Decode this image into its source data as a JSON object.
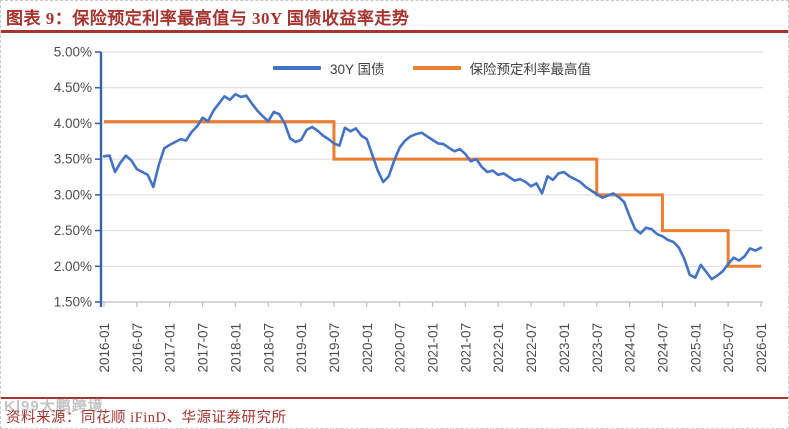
{
  "figure": {
    "title": "图表 9：保险预定利率最高值与 30Y 国债收益率走势",
    "source": "资料来源：同花顺 iFinD、华源证券研究所",
    "watermark": "K|99大鹏跨境"
  },
  "colors": {
    "accent_red": "#A6342F",
    "series_blue": "#4472C4",
    "series_orange": "#ED7D31",
    "gridline": "#D9D9D9",
    "axis_gray": "#BFBFBF",
    "axis_blue": "#3A62A7",
    "tick_label": "#4D4D4D",
    "legend_text": "#404040",
    "watermark_gray": "#8A8A8A"
  },
  "chart_data": {
    "type": "line",
    "title": "保险预定利率最高值与30Y国债收益率走势",
    "xlabel": "",
    "ylabel": "",
    "x_start": "2016-01",
    "x_end": "2026-01",
    "x_tick_interval_months": 6,
    "x_tick_labels": [
      "2016-01",
      "2016-07",
      "2017-01",
      "2017-07",
      "2018-01",
      "2018-07",
      "2019-01",
      "2019-07",
      "2020-01",
      "2020-07",
      "2021-01",
      "2021-07",
      "2022-01",
      "2022-07",
      "2023-01",
      "2023-07",
      "2024-01",
      "2024-07",
      "2025-01",
      "2025-07",
      "2026-01"
    ],
    "ylim": [
      1.5,
      5.0
    ],
    "y_tick_step": 0.5,
    "y_tick_labels": [
      "5.00%",
      "4.50%",
      "4.00%",
      "3.50%",
      "3.00%",
      "2.50%",
      "2.00%",
      "1.50%"
    ],
    "grid": "horizontal",
    "legend_position": "top-center",
    "series": [
      {
        "name": "30Y 国债",
        "color": "#4472C4",
        "style": "line",
        "start_month": "2016-01",
        "frequency": "monthly",
        "unit": "%",
        "values": [
          3.54,
          3.55,
          3.32,
          3.45,
          3.55,
          3.48,
          3.36,
          3.32,
          3.28,
          3.11,
          3.42,
          3.65,
          3.7,
          3.74,
          3.78,
          3.76,
          3.88,
          3.96,
          4.08,
          4.03,
          4.18,
          4.28,
          4.38,
          4.33,
          4.41,
          4.37,
          4.39,
          4.28,
          4.18,
          4.1,
          4.03,
          4.16,
          4.13,
          4.0,
          3.79,
          3.74,
          3.77,
          3.91,
          3.95,
          3.9,
          3.83,
          3.78,
          3.72,
          3.69,
          3.94,
          3.89,
          3.93,
          3.83,
          3.78,
          3.56,
          3.34,
          3.18,
          3.26,
          3.48,
          3.66,
          3.76,
          3.82,
          3.85,
          3.87,
          3.82,
          3.77,
          3.72,
          3.71,
          3.66,
          3.61,
          3.64,
          3.57,
          3.47,
          3.5,
          3.39,
          3.32,
          3.34,
          3.28,
          3.3,
          3.25,
          3.2,
          3.22,
          3.18,
          3.12,
          3.16,
          3.02,
          3.26,
          3.21,
          3.3,
          3.32,
          3.26,
          3.22,
          3.18,
          3.11,
          3.06,
          3.01,
          2.96,
          2.99,
          3.02,
          2.97,
          2.9,
          2.7,
          2.52,
          2.46,
          2.54,
          2.52,
          2.45,
          2.42,
          2.37,
          2.34,
          2.26,
          2.1,
          1.88,
          1.84,
          2.02,
          1.92,
          1.82,
          1.87,
          1.93,
          2.03,
          2.12,
          2.08,
          2.14,
          2.25,
          2.22,
          2.26
        ]
      },
      {
        "name": "保险预定利率最高值",
        "color": "#ED7D31",
        "style": "step",
        "unit": "%",
        "steps": [
          {
            "from": "2016-01",
            "to": "2019-07",
            "value": 4.025
          },
          {
            "from": "2019-08",
            "to": "2023-07",
            "value": 3.5
          },
          {
            "from": "2023-08",
            "to": "2024-07",
            "value": 3.0
          },
          {
            "from": "2024-08",
            "to": "2025-07",
            "value": 2.5
          },
          {
            "from": "2025-08",
            "to": "2026-01",
            "value": 2.0
          }
        ]
      }
    ]
  }
}
